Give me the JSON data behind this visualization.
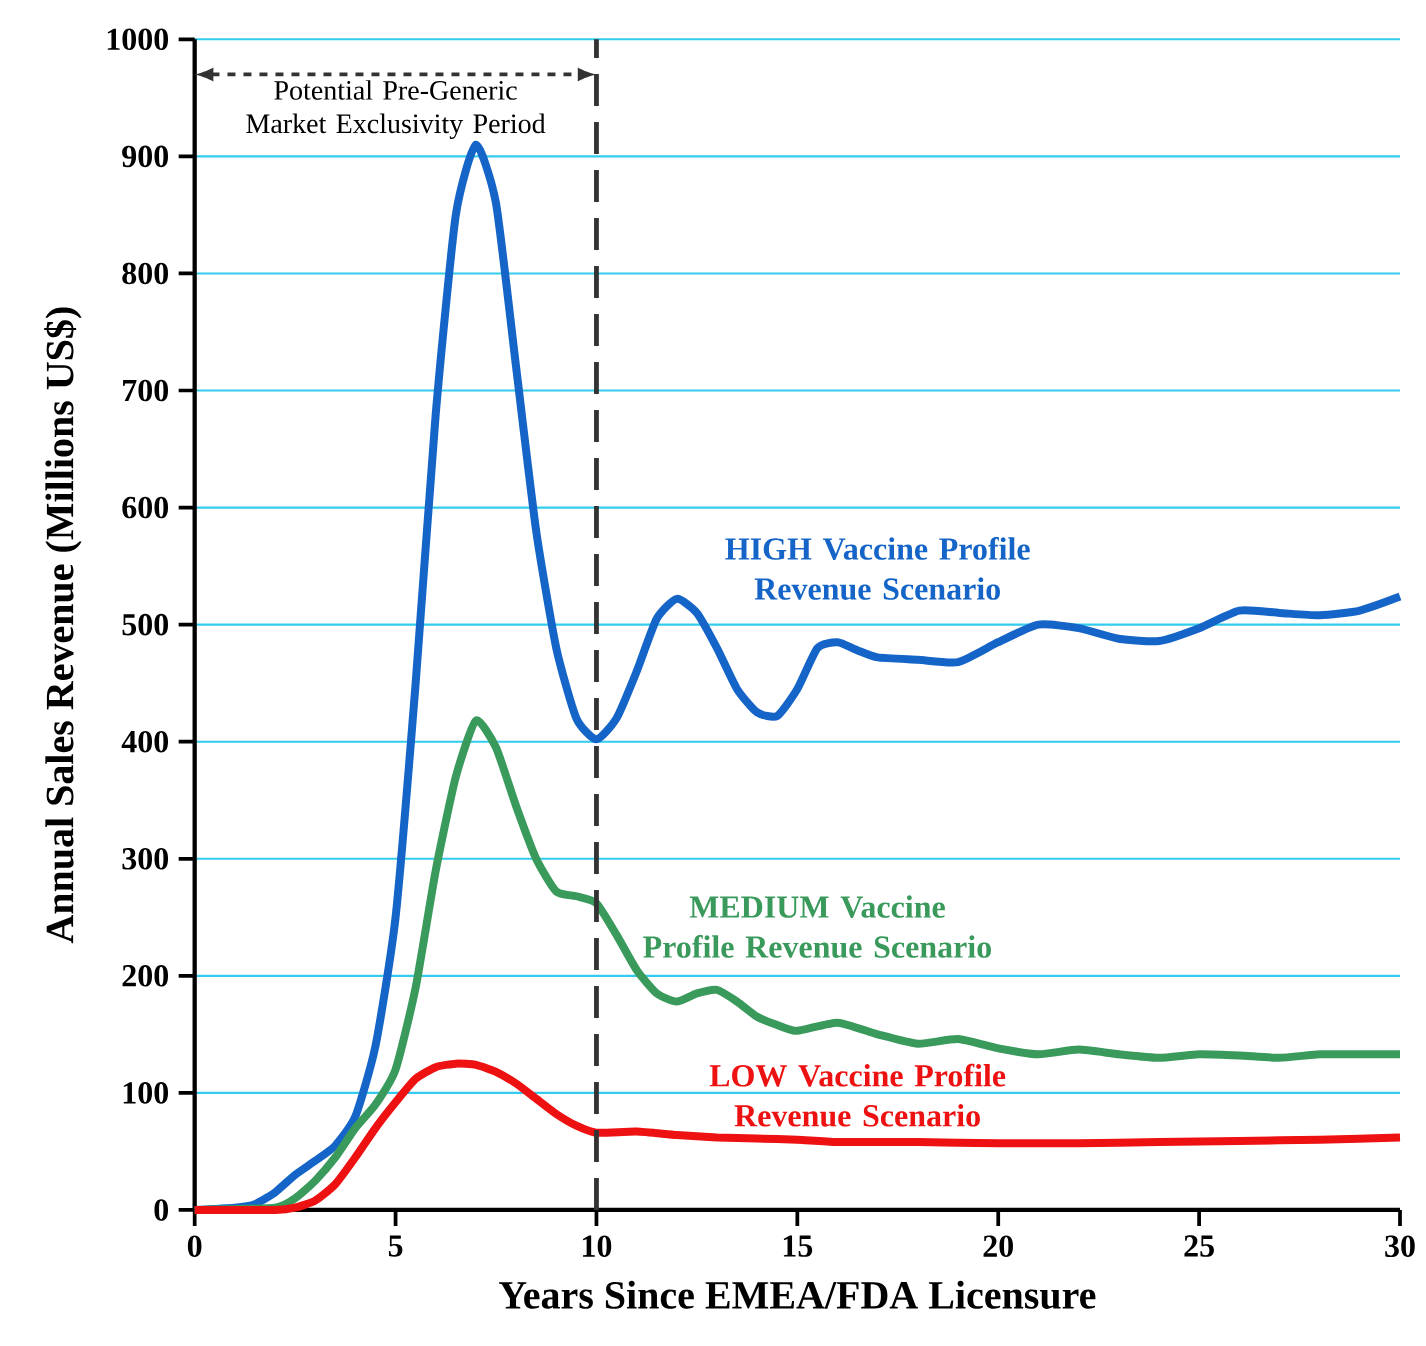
{
  "chart_data": {
    "type": "line",
    "xlabel": "Years Since EMEA/FDA Licensure",
    "ylabel": "Annual Sales Revenue (Millions US$)",
    "xlim": [
      0,
      30
    ],
    "ylim": [
      0,
      1000
    ],
    "xticks": [
      0,
      5,
      10,
      15,
      20,
      25,
      30
    ],
    "yticks": [
      0,
      100,
      200,
      300,
      400,
      500,
      600,
      700,
      800,
      900,
      1000
    ],
    "grid": "y",
    "line_style": "solid",
    "marker": "none",
    "ref_lines": [
      {
        "axis": "x",
        "value": 10,
        "label": "Potential Pre-Generic Market Exclusivity Period",
        "color": "#333333",
        "line_style": "dashed"
      }
    ],
    "series": [
      {
        "name": "HIGH Vaccine Profile Revenue Scenario",
        "color": "#1565c8",
        "x": [
          0,
          1,
          1.5,
          2,
          2.5,
          3,
          3.5,
          4,
          4.5,
          5,
          5.5,
          6,
          6.5,
          7,
          7.5,
          8,
          8.5,
          9,
          9.5,
          10,
          10.5,
          11,
          11.5,
          12,
          12.5,
          13,
          13.5,
          14,
          14.5,
          15,
          15.5,
          16,
          16.5,
          17,
          18,
          19,
          20,
          21,
          22,
          23,
          24,
          25,
          26,
          27,
          28,
          29,
          30
        ],
        "values": [
          0,
          2,
          5,
          15,
          30,
          42,
          55,
          80,
          140,
          250,
          450,
          680,
          850,
          910,
          860,
          720,
          580,
          480,
          420,
          402,
          420,
          460,
          505,
          522,
          510,
          480,
          445,
          425,
          422,
          445,
          480,
          485,
          478,
          472,
          470,
          468,
          485,
          500,
          497,
          488,
          486,
          497,
          512,
          510,
          508,
          512,
          524
        ]
      },
      {
        "name": "MEDIUM Vaccine Profile Revenue Scenario",
        "color": "#3a9a5c",
        "x": [
          0,
          2,
          2.5,
          3,
          3.5,
          4,
          4.5,
          5,
          5.5,
          6,
          6.5,
          7,
          7.5,
          8,
          8.5,
          9,
          9.5,
          10,
          10.5,
          11,
          11.5,
          12,
          12.5,
          13,
          13.5,
          14,
          14.5,
          15,
          16,
          17,
          18,
          19,
          20,
          21,
          22,
          23,
          24,
          25,
          26,
          27,
          28,
          29,
          30
        ],
        "values": [
          0,
          2,
          10,
          25,
          45,
          70,
          90,
          120,
          190,
          290,
          370,
          418,
          395,
          345,
          300,
          272,
          268,
          262,
          235,
          205,
          185,
          178,
          185,
          188,
          178,
          165,
          158,
          153,
          160,
          150,
          142,
          146,
          138,
          133,
          137,
          133,
          130,
          133,
          132,
          130,
          133,
          133,
          133
        ]
      },
      {
        "name": "LOW Vaccine Profile Revenue Scenario",
        "color": "#ee1111",
        "x": [
          0,
          2,
          2.5,
          3,
          3.5,
          4,
          4.5,
          5,
          5.5,
          6,
          6.5,
          7,
          7.5,
          8,
          8.5,
          9,
          9.5,
          10,
          11,
          12,
          13,
          14,
          15,
          16,
          18,
          20,
          22,
          24,
          26,
          28,
          30
        ],
        "values": [
          0,
          0,
          2,
          8,
          22,
          45,
          70,
          92,
          112,
          122,
          125,
          124,
          118,
          108,
          95,
          82,
          72,
          66,
          67,
          64,
          62,
          61,
          60,
          58,
          58,
          57,
          57,
          58,
          59,
          60,
          62
        ]
      }
    ]
  }
}
